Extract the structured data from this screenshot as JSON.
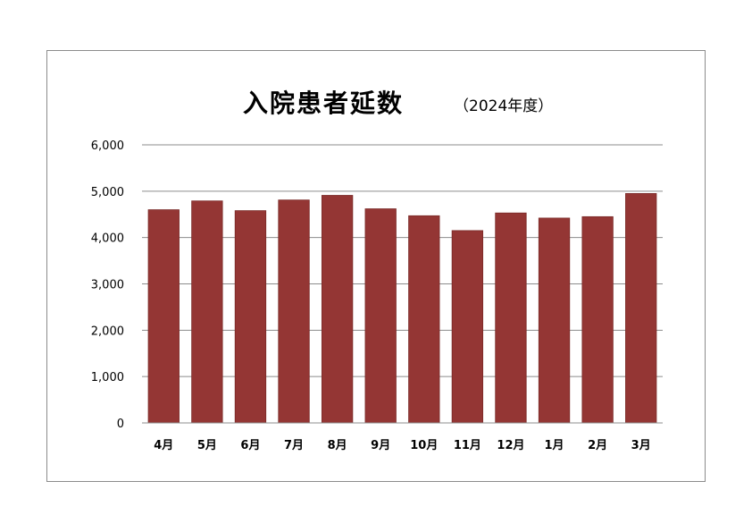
{
  "chart_data": {
    "type": "bar",
    "title": "入院患者延数",
    "subtitle": "（2024年度）",
    "categories": [
      "4月",
      "5月",
      "6月",
      "7月",
      "8月",
      "9月",
      "10月",
      "11月",
      "12月",
      "1月",
      "2月",
      "3月"
    ],
    "values": [
      4600,
      4790,
      4580,
      4810,
      4910,
      4620,
      4470,
      4150,
      4530,
      4420,
      4450,
      4950
    ],
    "ylim": [
      0,
      6000
    ],
    "yticks": [
      0,
      1000,
      2000,
      3000,
      4000,
      5000,
      6000
    ],
    "ytick_labels": [
      "0",
      "1,000",
      "2,000",
      "3,000",
      "4,000",
      "5,000",
      "6,000"
    ],
    "xlabel": "",
    "ylabel": "",
    "grid": true,
    "legend": "none",
    "bar_color": "#943634",
    "bar_edge_color": "#7a2a28",
    "grid_color": "#8c8c8c"
  }
}
